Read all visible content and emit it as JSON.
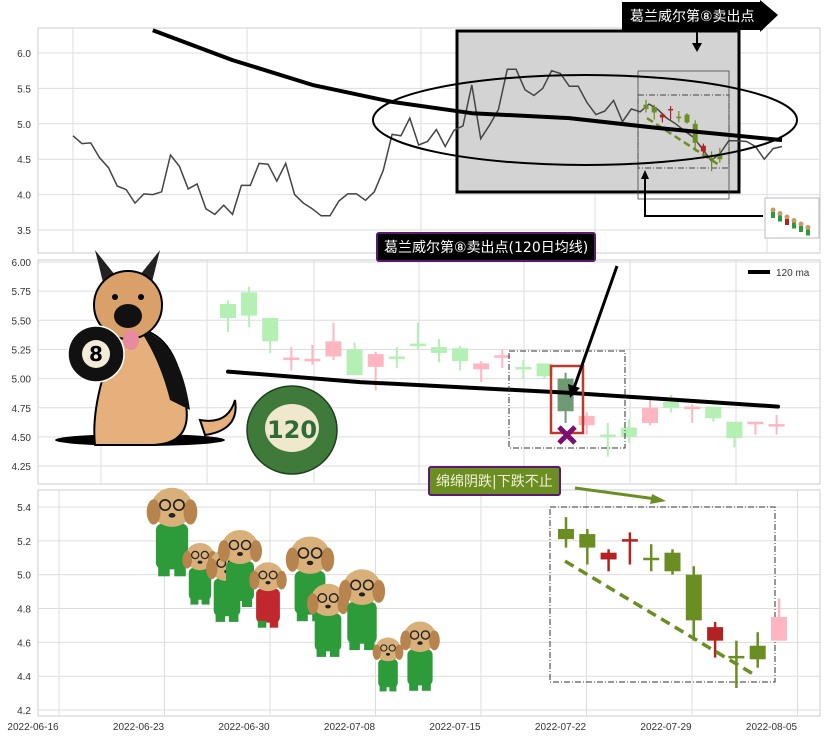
{
  "annotations": {
    "top_title": "葛兰威尔第⑧卖出点",
    "middle_title": "葛兰威尔第⑧卖出点(120日均线)",
    "bottom_title": "绵绵阴跌|下跌不止",
    "eight_ball": "8",
    "ma_ball": "120"
  },
  "colors": {
    "up_light": "#ffb6c1",
    "down_light": "#b4f0b4",
    "highlight": "#6f9a74",
    "down_dark": "#6b8e23",
    "up_dark": "#b22222",
    "ma": "#000000",
    "marker": "#7b1070",
    "label_purple": "#5a1a6e"
  },
  "chart_data": [
    {
      "type": "line",
      "panel": "top",
      "grid": true,
      "ylim": [
        3.3,
        6.35
      ],
      "yticks": [
        "3.5",
        "4.0",
        "4.5",
        "5.0",
        "5.5",
        "6.0"
      ],
      "series": [
        {
          "values": [
            4.83,
            4.72,
            4.73,
            4.52,
            4.38,
            4.12,
            4.07,
            3.88,
            4.01,
            4.0,
            4.04,
            4.56,
            4.4,
            4.08,
            4.15,
            3.8,
            3.72,
            3.85,
            3.72,
            4.13,
            4.13,
            4.44,
            4.43,
            4.19,
            4.44,
            4.0,
            3.88,
            3.8,
            3.7,
            3.7,
            3.91,
            4.01,
            4.01,
            3.92,
            4.04,
            4.34,
            4.85,
            4.83,
            5.08,
            4.7,
            4.75,
            4.92,
            4.68,
            4.91,
            4.97,
            5.55,
            4.79,
            4.98,
            5.2,
            5.77,
            5.77,
            5.48,
            5.4,
            5.5,
            5.75,
            5.71,
            5.53,
            5.53,
            5.3,
            5.13,
            5.18,
            5.33,
            5.03,
            5.21,
            5.17,
            5.28,
            5.2,
            5.08,
            5.0,
            4.9,
            4.81,
            4.65,
            4.48,
            4.58,
            4.76,
            4.76,
            4.75,
            4.68,
            4.5,
            4.65,
            4.68
          ]
        },
        {
          "kind": "ma",
          "points": [
            [
              9,
              6.32
            ],
            [
              18,
              5.9
            ],
            [
              27,
              5.55
            ],
            [
              36,
              5.31
            ],
            [
              45,
              5.15
            ],
            [
              56,
              5.08
            ],
            [
              66,
              4.94
            ],
            [
              80,
              4.77
            ]
          ]
        }
      ]
    },
    {
      "type": "candlestick",
      "panel": "middle",
      "grid": true,
      "ylim": [
        4.1,
        6.0
      ],
      "yticks": [
        "4.25",
        "4.50",
        "4.75",
        "5.00",
        "5.25",
        "5.50",
        "5.75",
        "6.00"
      ],
      "legend": {
        "label": "120 ma",
        "position": "top-right"
      },
      "candles": [
        {
          "o": 5.52,
          "h": 5.67,
          "l": 5.4,
          "c": 5.64,
          "color": "down_light"
        },
        {
          "o": 5.54,
          "h": 5.79,
          "l": 5.44,
          "c": 5.74,
          "color": "down_light"
        },
        {
          "o": 5.52,
          "h": 5.52,
          "l": 5.22,
          "c": 5.32,
          "color": "down_light"
        },
        {
          "o": 5.16,
          "h": 5.27,
          "l": 5.07,
          "c": 5.18,
          "color": "up_light"
        },
        {
          "o": 5.17,
          "h": 5.29,
          "l": 5.12,
          "c": 5.17,
          "color": "up_light"
        },
        {
          "o": 5.19,
          "h": 5.48,
          "l": 5.16,
          "c": 5.32,
          "color": "up_light"
        },
        {
          "o": 5.25,
          "h": 5.31,
          "l": 5.03,
          "c": 5.03,
          "color": "down_light"
        },
        {
          "o": 5.1,
          "h": 5.23,
          "l": 4.9,
          "c": 5.21,
          "color": "up_light"
        },
        {
          "o": 5.19,
          "h": 5.27,
          "l": 5.09,
          "c": 5.18,
          "color": "down_light"
        },
        {
          "o": 5.3,
          "h": 5.48,
          "l": 5.25,
          "c": 5.29,
          "color": "down_light"
        },
        {
          "o": 5.27,
          "h": 5.34,
          "l": 5.14,
          "c": 5.22,
          "color": "down_light"
        },
        {
          "o": 5.26,
          "h": 5.28,
          "l": 5.07,
          "c": 5.15,
          "color": "down_light"
        },
        {
          "o": 5.08,
          "h": 5.15,
          "l": 4.97,
          "c": 5.13,
          "color": "up_light"
        },
        {
          "o": 5.19,
          "h": 5.25,
          "l": 5.09,
          "c": 5.2,
          "color": "up_light"
        },
        {
          "o": 5.1,
          "h": 5.16,
          "l": 5.0,
          "c": 5.09,
          "color": "down_light"
        },
        {
          "o": 5.13,
          "h": 5.13,
          "l": 5.0,
          "c": 5.02,
          "color": "down_light"
        },
        {
          "o": 5.0,
          "h": 5.05,
          "l": 4.62,
          "c": 4.72,
          "color": "highlight"
        },
        {
          "o": 4.6,
          "h": 4.71,
          "l": 4.52,
          "c": 4.68,
          "color": "up_light"
        },
        {
          "o": 4.52,
          "h": 4.62,
          "l": 4.33,
          "c": 4.51,
          "color": "down_light"
        },
        {
          "o": 4.58,
          "h": 4.65,
          "l": 4.45,
          "c": 4.5,
          "color": "down_light"
        },
        {
          "o": 4.62,
          "h": 4.84,
          "l": 4.6,
          "c": 4.75,
          "color": "up_light"
        },
        {
          "o": 4.8,
          "h": 4.86,
          "l": 4.71,
          "c": 4.75,
          "color": "down_light"
        },
        {
          "o": 4.75,
          "h": 4.78,
          "l": 4.62,
          "c": 4.76,
          "color": "up_light"
        },
        {
          "o": 4.76,
          "h": 4.76,
          "l": 4.63,
          "c": 4.66,
          "color": "down_light"
        },
        {
          "o": 4.63,
          "h": 4.63,
          "l": 4.41,
          "c": 4.49,
          "color": "down_light"
        },
        {
          "o": 4.62,
          "h": 4.63,
          "l": 4.52,
          "c": 4.63,
          "color": "up_light"
        },
        {
          "o": 4.6,
          "h": 4.69,
          "l": 4.52,
          "c": 4.61,
          "color": "up_light"
        }
      ],
      "ma_120": [
        5.06,
        4.97,
        4.88,
        4.76
      ]
    },
    {
      "type": "candlestick",
      "panel": "bottom",
      "grid": true,
      "ylim": [
        4.17,
        5.47
      ],
      "yticks": [
        "4.2",
        "4.4",
        "4.6",
        "4.8",
        "5.0",
        "5.2",
        "5.4"
      ],
      "xticks": [
        "2022-06-16",
        "2022-06-23",
        "2022-06-30",
        "2022-07-08",
        "2022-07-15",
        "2022-07-22",
        "2022-07-29",
        "2022-08-05"
      ],
      "candles": [
        {
          "o": 5.27,
          "h": 5.34,
          "l": 5.16,
          "c": 5.21,
          "color": "down_dark"
        },
        {
          "o": 5.24,
          "h": 5.27,
          "l": 5.06,
          "c": 5.16,
          "color": "down_dark"
        },
        {
          "o": 5.13,
          "h": 5.15,
          "l": 5.02,
          "c": 5.09,
          "color": "up_dark"
        },
        {
          "o": 5.2,
          "h": 5.25,
          "l": 5.06,
          "c": 5.21,
          "color": "up_dark"
        },
        {
          "o": 5.1,
          "h": 5.18,
          "l": 5.02,
          "c": 5.1,
          "color": "down_dark"
        },
        {
          "o": 5.13,
          "h": 5.15,
          "l": 5.0,
          "c": 5.02,
          "color": "down_dark"
        },
        {
          "o": 5.0,
          "h": 5.05,
          "l": 4.61,
          "c": 4.73,
          "color": "down_dark"
        },
        {
          "o": 4.61,
          "h": 4.72,
          "l": 4.51,
          "c": 4.69,
          "color": "up_dark"
        },
        {
          "o": 4.52,
          "h": 4.61,
          "l": 4.33,
          "c": 4.52,
          "color": "down_dark"
        },
        {
          "o": 4.58,
          "h": 4.66,
          "l": 4.45,
          "c": 4.5,
          "color": "down_dark"
        },
        {
          "o": 4.61,
          "h": 4.86,
          "l": 4.61,
          "c": 4.75,
          "color": "up_light"
        }
      ],
      "trendline": [
        5.08,
        4.41
      ]
    }
  ]
}
